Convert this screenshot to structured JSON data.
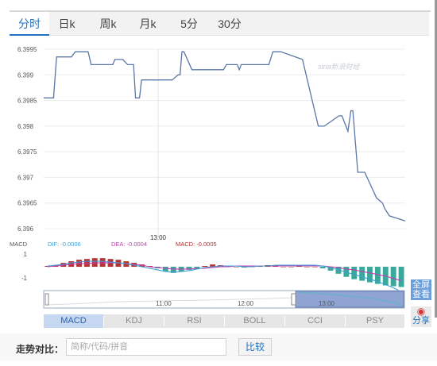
{
  "tabs": [
    {
      "label": "分时",
      "active": true
    },
    {
      "label": "日k",
      "active": false
    },
    {
      "label": "周k",
      "active": false
    },
    {
      "label": "月k",
      "active": false
    },
    {
      "label": "5分",
      "active": false
    },
    {
      "label": "30分",
      "active": false
    }
  ],
  "watermark": "sina新浪财经",
  "chart_data": [
    {
      "type": "line",
      "title": "",
      "y_ticks": [
        "6.3995",
        "6.399",
        "6.3985",
        "6.398",
        "6.3975",
        "6.397",
        "6.3965",
        "6.396"
      ],
      "ylim": [
        6.396,
        6.3995
      ],
      "x_marker": "13:00",
      "series": [
        {
          "color": "#5a77a6",
          "x": [
            0,
            10,
            13,
            28,
            32,
            45,
            48,
            60,
            70,
            72,
            80,
            85,
            91,
            93,
            97,
            99,
            130,
            136,
            138,
            140,
            142,
            150,
            152,
            160,
            163,
            182,
            185,
            196,
            198,
            200,
            205,
            210,
            213,
            220,
            222,
            228,
            232,
            240,
            262,
            278,
            284,
            299,
            302,
            308,
            311,
            313,
            318,
            320,
            323,
            325,
            337,
            343,
            345,
            350,
            358,
            366
          ],
          "y": [
            6.39855,
            6.39855,
            6.39935,
            6.39935,
            6.39945,
            6.39945,
            6.3992,
            6.3992,
            6.3992,
            6.3993,
            6.3993,
            6.3992,
            6.3992,
            6.39855,
            6.39855,
            6.3989,
            6.3989,
            6.399,
            6.399,
            6.39945,
            6.39945,
            6.3991,
            6.3991,
            6.3991,
            6.3991,
            6.3991,
            6.3992,
            6.3992,
            6.3991,
            6.3992,
            6.3992,
            6.3992,
            6.3992,
            6.3992,
            6.3992,
            6.3992,
            6.39945,
            6.39945,
            6.3993,
            6.398,
            6.398,
            6.3982,
            6.3982,
            6.3979,
            6.3983,
            6.3983,
            6.3971,
            6.3971,
            6.3971,
            6.3971,
            6.3966,
            6.3965,
            6.3964,
            6.39625,
            6.3962,
            6.39615
          ]
        }
      ]
    },
    {
      "type": "bar",
      "title": "MACD",
      "legend": [
        {
          "label": "DIF: -0.0006",
          "color": "#3d9fd4"
        },
        {
          "label": "DEA: -0.0004",
          "color": "#c23fb5"
        },
        {
          "label": "MACD: -0.0005",
          "color": "#b53333"
        }
      ],
      "y_ticks": [
        "1",
        "-1"
      ],
      "bars": [
        0.1,
        0.2,
        0.5,
        0.7,
        0.9,
        1.0,
        1.1,
        1.1,
        1.0,
        0.9,
        0.7,
        0.5,
        0.3,
        0.1,
        -0.2,
        -0.6,
        -0.8,
        -0.6,
        -0.4,
        -0.2,
        0.1,
        0.3,
        0.2,
        0.1,
        0.0,
        -0.1,
        0.0,
        0.1,
        0.2,
        0.1,
        0.0,
        0.0,
        0.1,
        0.0,
        0.0,
        -0.2,
        -0.5,
        -0.9,
        -1.3,
        -1.6,
        -1.8,
        -2.0,
        -2.2,
        -2.4,
        -2.5,
        -2.6
      ],
      "dif": [
        0.1,
        0.2,
        0.3,
        0.5,
        0.6,
        0.7,
        0.7,
        0.7,
        0.6,
        0.5,
        0.4,
        0.2,
        0.0,
        -0.2,
        -0.4,
        -0.6,
        -0.7,
        -0.6,
        -0.5,
        -0.3,
        -0.1,
        0.0,
        0.1,
        0.1,
        0.1,
        0.0,
        0.0,
        0.1,
        0.1,
        0.2,
        0.2,
        0.2,
        0.2,
        0.2,
        0.2,
        0.1,
        -0.1,
        -0.4,
        -0.7,
        -1.0,
        -1.3,
        -1.6,
        -1.9,
        -2.3,
        -2.7,
        -3.2
      ],
      "dea": [
        0.0,
        0.1,
        0.2,
        0.3,
        0.4,
        0.4,
        0.5,
        0.5,
        0.5,
        0.5,
        0.4,
        0.3,
        0.2,
        0.0,
        -0.1,
        -0.2,
        -0.3,
        -0.3,
        -0.3,
        -0.2,
        -0.2,
        -0.1,
        0.0,
        0.0,
        0.1,
        0.1,
        0.1,
        0.1,
        0.1,
        0.1,
        0.1,
        0.1,
        0.1,
        0.1,
        0.1,
        0.1,
        0.0,
        -0.1,
        -0.3,
        -0.4,
        -0.6,
        -0.8,
        -1.0,
        -1.2,
        -1.5,
        -1.8
      ]
    }
  ],
  "navigator": {
    "time_labels": [
      "11:00",
      "12:00",
      "13:00"
    ]
  },
  "side_buttons": {
    "full_view": "全屏\n查看",
    "share_icon": "weibo-icon",
    "share": "分享"
  },
  "indicators": [
    {
      "label": "MACD",
      "active": true
    },
    {
      "label": "KDJ",
      "active": false
    },
    {
      "label": "RSI",
      "active": false
    },
    {
      "label": "BOLL",
      "active": false
    },
    {
      "label": "CCI",
      "active": false
    },
    {
      "label": "PSY",
      "active": false
    }
  ],
  "compare": {
    "label": "走势对比：",
    "placeholder": "简称/代码/拼音",
    "button": "比较"
  }
}
